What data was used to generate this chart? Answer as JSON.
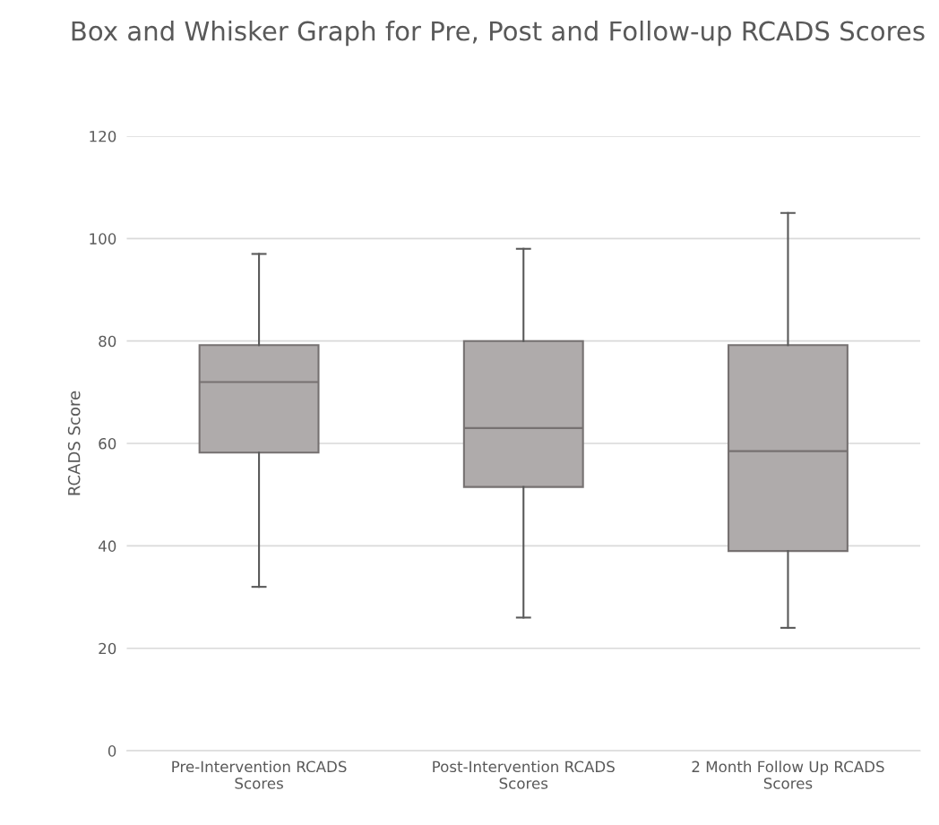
{
  "chart_data": {
    "type": "box",
    "title": "Box and Whisker Graph for Pre, Post and Follow-up RCADS Scores",
    "ylabel": "RCADS Score",
    "categories": [
      "Pre-Intervention RCADS Scores",
      "Post-Intervention RCADS Scores",
      "2 Month Follow Up RCADS Scores"
    ],
    "series": [
      {
        "color": "#afabab",
        "boxes": [
          {
            "low": 32,
            "q1": 58.2,
            "median": 72,
            "q3": 79.2,
            "high": 97
          },
          {
            "low": 26,
            "q1": 51.5,
            "median": 63,
            "q3": 80,
            "high": 98
          },
          {
            "low": 24,
            "q1": 39,
            "median": 58.5,
            "q3": 79.2,
            "high": 105
          }
        ]
      }
    ],
    "ylim": [
      0,
      120
    ],
    "yticks": [
      0,
      20,
      40,
      60,
      80,
      100,
      120
    ],
    "grid": "y",
    "legend": false
  }
}
